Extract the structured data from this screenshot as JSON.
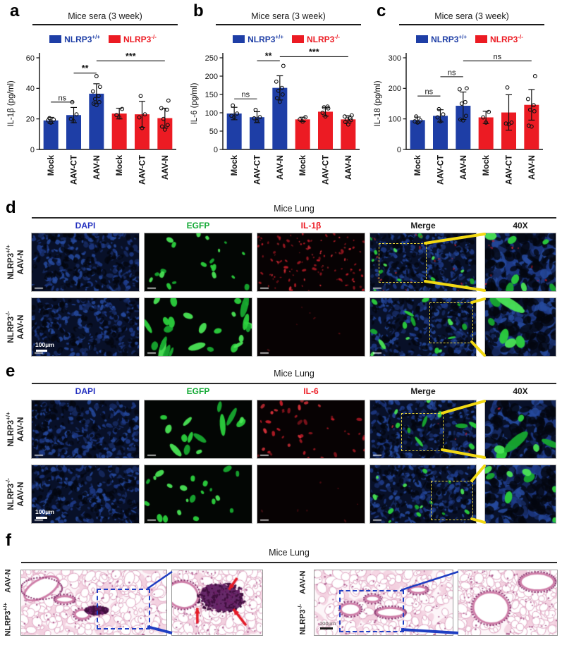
{
  "chart_data": [
    {
      "type": "bar",
      "letter": "a",
      "title": "Mice sera (3 week)",
      "legend": [
        {
          "base": "NLRP3",
          "sup": "+/+",
          "color": "#1e3ea6"
        },
        {
          "base": "NLRP3",
          "sup": "-/-",
          "color": "#ec1b23"
        }
      ],
      "ylabel": "IL-1β (pg/ml)",
      "ylim": [
        0,
        60
      ],
      "yticks": [
        0,
        20,
        40,
        60
      ],
      "categories": [
        "Mock",
        "AAV-CT",
        "AAV-N",
        "Mock",
        "AAV-CT",
        "AAV-N"
      ],
      "bar_colors": [
        "#1e3ea6",
        "#1e3ea6",
        "#1e3ea6",
        "#ec1b23",
        "#ec1b23",
        "#ec1b23"
      ],
      "values": [
        19,
        22.5,
        36.5,
        23.5,
        23,
        20.5
      ],
      "errors": [
        2,
        5,
        6.5,
        3.5,
        8.5,
        6.5
      ],
      "points": [
        [
          17.5,
          19,
          19.5,
          20.5
        ],
        [
          18.5,
          20,
          23,
          31
        ],
        [
          29,
          30,
          31,
          33,
          35,
          38,
          41,
          48
        ],
        [
          21,
          22.5,
          26.5
        ],
        [
          14,
          21,
          23,
          35
        ],
        [
          13,
          15,
          16,
          20,
          26,
          27,
          32
        ]
      ],
      "significance": [
        {
          "from": 0,
          "to": 1,
          "label": "ns",
          "y": 31
        },
        {
          "from": 1,
          "to": 2,
          "label": "**",
          "y": 50
        },
        {
          "from": 2,
          "to": 5,
          "label": "***",
          "y": 58
        }
      ],
      "grid": false,
      "legend_position": "top"
    },
    {
      "type": "bar",
      "letter": "b",
      "title": "Mice sera (3 week)",
      "legend": [
        {
          "base": "NLRP3",
          "sup": "+/+",
          "color": "#1e3ea6"
        },
        {
          "base": "NLRP3",
          "sup": "-/-",
          "color": "#ec1b23"
        }
      ],
      "ylabel": "IL-6 (pg/ml)",
      "ylim": [
        0,
        250
      ],
      "yticks": [
        0,
        50,
        100,
        150,
        200,
        250
      ],
      "categories": [
        "Mock",
        "AAV-CT",
        "AAV-N",
        "Mock",
        "AAV-CT",
        "AAV-N"
      ],
      "bar_colors": [
        "#1e3ea6",
        "#1e3ea6",
        "#1e3ea6",
        "#ec1b23",
        "#ec1b23",
        "#ec1b23"
      ],
      "values": [
        98,
        88,
        168,
        82,
        103,
        82
      ],
      "errors": [
        17,
        15,
        33,
        6,
        12,
        10
      ],
      "points": [
        [
          88,
          92,
          98,
          120
        ],
        [
          78,
          85,
          88,
          108
        ],
        [
          130,
          140,
          150,
          160,
          168,
          185,
          228
        ],
        [
          76,
          82,
          88
        ],
        [
          90,
          100,
          112,
          115,
          117
        ],
        [
          68,
          75,
          80,
          82,
          85,
          90,
          93
        ]
      ],
      "significance": [
        {
          "from": 0,
          "to": 1,
          "label": "ns",
          "y": 138
        },
        {
          "from": 1,
          "to": 2,
          "label": "**",
          "y": 242
        },
        {
          "from": 2,
          "to": 5,
          "label": "***",
          "y": 253
        }
      ],
      "grid": false,
      "legend_position": "top"
    },
    {
      "type": "bar",
      "letter": "c",
      "title": "Mice sera (3 week)",
      "legend": [
        {
          "base": "NLRP3",
          "sup": "+/+",
          "color": "#1e3ea6"
        },
        {
          "base": "NLRP3",
          "sup": "-/-",
          "color": "#ec1b23"
        }
      ],
      "ylabel": "IL-18 (pg/ml)",
      "ylim": [
        0,
        300
      ],
      "yticks": [
        0,
        100,
        200,
        300
      ],
      "categories": [
        "Mock",
        "AAV-CT",
        "AAV-N",
        "Mock",
        "AAV-CT",
        "AAV-N"
      ],
      "bar_colors": [
        "#1e3ea6",
        "#1e3ea6",
        "#1e3ea6",
        "#ec1b23",
        "#ec1b23",
        "#ec1b23"
      ],
      "values": [
        96,
        110,
        143,
        105,
        121,
        146
      ],
      "errors": [
        10,
        20,
        45,
        20,
        58,
        50
      ],
      "points": [
        [
          88,
          92,
          95,
          108
        ],
        [
          92,
          105,
          115,
          132
        ],
        [
          95,
          98,
          110,
          150,
          155,
          197,
          200
        ],
        [
          88,
          105,
          123
        ],
        [
          82,
          85,
          88,
          203
        ],
        [
          75,
          78,
          125,
          130,
          145,
          165,
          240
        ]
      ],
      "significance": [
        {
          "from": 0,
          "to": 1,
          "label": "ns",
          "y": 175
        },
        {
          "from": 1,
          "to": 2,
          "label": "ns",
          "y": 238
        },
        {
          "from": 2,
          "to": 5,
          "label": "ns",
          "y": 290
        }
      ],
      "grid": false,
      "legend_position": "top"
    }
  ],
  "micro_panels": [
    {
      "letter": "d",
      "title": "Mice Lung",
      "columns": [
        {
          "label": "DAPI",
          "color": "#2633c0"
        },
        {
          "label": "EGFP",
          "color": "#12a934"
        },
        {
          "label": "IL-1β",
          "color": "#ec1b23"
        },
        {
          "label": "Merge",
          "color": "#1c1c1c"
        },
        {
          "label": "40X",
          "color": "#1c1c1c"
        }
      ],
      "rows": [
        {
          "base": "NLRP3",
          "sup": "+/+",
          "line2": "AAV-N"
        },
        {
          "base": "NLRP3",
          "sup": "-/-",
          "line2": "AAV-N",
          "scale_bar": "100μm"
        }
      ]
    },
    {
      "letter": "e",
      "title": "Mice Lung",
      "columns": [
        {
          "label": "DAPI",
          "color": "#2633c0"
        },
        {
          "label": "EGFP",
          "color": "#12a934"
        },
        {
          "label": "IL-6",
          "color": "#ec1b23"
        },
        {
          "label": "Merge",
          "color": "#1c1c1c"
        },
        {
          "label": "40X",
          "color": "#1c1c1c"
        }
      ],
      "rows": [
        {
          "base": "NLRP3",
          "sup": "+/+",
          "line2": "AAV-N"
        },
        {
          "base": "NLRP3",
          "sup": "-/-",
          "line2": "AAV-N",
          "scale_bar": "100μm"
        }
      ]
    }
  ],
  "histology": {
    "letter": "f",
    "title": "Mice Lung",
    "groups": [
      {
        "base": "NLRP3",
        "sup": "+/+",
        "rest": "AAV-N"
      },
      {
        "base": "NLRP3",
        "sup": "-/-",
        "rest": "AAV-N",
        "scale_bar": "100μm"
      }
    ]
  }
}
